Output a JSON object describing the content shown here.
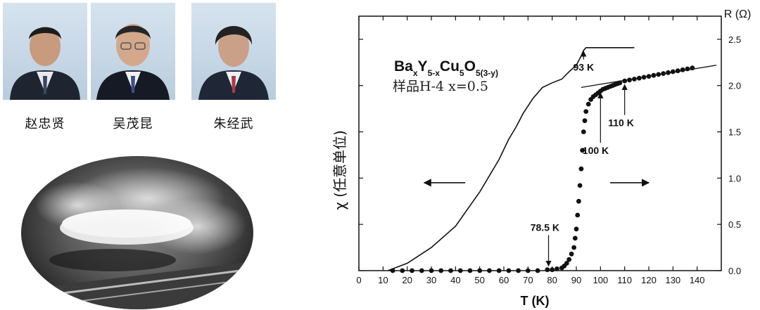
{
  "people": [
    {
      "name": "赵忠贤",
      "icon": "portrait-photo-icon"
    },
    {
      "name": "吴茂昆",
      "icon": "portrait-photo-icon"
    },
    {
      "name": "朱经武",
      "icon": "portrait-photo-icon"
    }
  ],
  "levitation_photo": {
    "icon": "magnetic-levitation-photo-icon"
  },
  "chart_data": {
    "type": "scatter",
    "compound": {
      "base": [
        "Ba",
        "Y",
        "Cu",
        "O"
      ],
      "subscripts": [
        "x",
        "5-x",
        "5",
        "5(3-y)"
      ]
    },
    "sample_label": "样品H-4  x=0.5",
    "xlabel": "T (K)",
    "ylabel_left": "χ (任意单位)",
    "ylabel_right": "R (Ω)",
    "xlim": [
      0,
      150
    ],
    "ylim_right": [
      0,
      2.75
    ],
    "x_ticks": [
      "0",
      "10",
      "20",
      "30",
      "40",
      "50",
      "60",
      "70",
      "80",
      "90",
      "100",
      "110",
      "120",
      "130",
      "140"
    ],
    "y_ticks_right": [
      "0.0",
      "0.5",
      "1.0",
      "1.5",
      "2.0",
      "2.5"
    ],
    "susceptibility_curve": {
      "x": [
        12,
        20,
        30,
        40,
        50,
        58,
        62,
        65,
        68,
        72,
        76,
        80,
        84,
        87,
        90,
        92,
        93,
        94,
        95,
        97,
        100,
        110,
        114
      ],
      "y": [
        0.0,
        0.08,
        0.25,
        0.48,
        0.85,
        1.2,
        1.42,
        1.55,
        1.7,
        1.86,
        1.98,
        2.03,
        2.07,
        2.15,
        2.22,
        2.32,
        2.38,
        2.41,
        2.41,
        2.41,
        2.41,
        2.41,
        2.41
      ]
    },
    "resistance_points": {
      "x": [
        14,
        18,
        22,
        26,
        30,
        34,
        38,
        42,
        46,
        50,
        54,
        58,
        62,
        66,
        70,
        74,
        78,
        80,
        82,
        84,
        85,
        86,
        87,
        88,
        89,
        89.5,
        90,
        90.5,
        91,
        91.5,
        92,
        92.5,
        93,
        93.5,
        94,
        95,
        96,
        97,
        98,
        99,
        100,
        101,
        102,
        103,
        104,
        105,
        106,
        107,
        108,
        110,
        112,
        114,
        116,
        118,
        120,
        122,
        124,
        126,
        128,
        130,
        132,
        134,
        136,
        138
      ],
      "y": [
        0,
        0,
        0,
        0,
        0,
        0,
        0,
        0,
        0,
        0,
        0,
        0,
        0,
        0,
        0,
        0,
        0.01,
        0.01,
        0.02,
        0.03,
        0.05,
        0.08,
        0.12,
        0.18,
        0.25,
        0.35,
        0.45,
        0.6,
        0.75,
        0.92,
        1.1,
        1.3,
        1.5,
        1.62,
        1.72,
        1.8,
        1.85,
        1.88,
        1.9,
        1.92,
        1.94,
        1.96,
        1.97,
        1.98,
        1.99,
        2.0,
        2.01,
        2.02,
        2.03,
        2.05,
        2.06,
        2.07,
        2.08,
        2.09,
        2.1,
        2.11,
        2.12,
        2.13,
        2.14,
        2.15,
        2.16,
        2.17,
        2.18,
        2.19
      ]
    },
    "trend_line": {
      "x": [
        92,
        148
      ],
      "y": [
        1.98,
        2.22
      ]
    },
    "annotations": [
      {
        "text": "93 K",
        "x": 93,
        "y": 2.16,
        "arrow_to": [
          93,
          2.4
        ]
      },
      {
        "text": "110 K",
        "x": 108.5,
        "y": 1.56,
        "arrow_to": [
          110,
          2.04
        ]
      },
      {
        "text": "100 K",
        "x": 98,
        "y": 1.26,
        "arrow_to": [
          100,
          1.95
        ]
      },
      {
        "text": "78.5 K",
        "x": 77,
        "y": 0.43,
        "arrow_to": [
          78.5,
          0.02
        ]
      }
    ],
    "direction_arrows": [
      {
        "label": "left-arrow",
        "from": [
          44,
          0.95
        ],
        "to": [
          27,
          0.95
        ]
      },
      {
        "label": "right-arrow",
        "from": [
          104,
          0.95
        ],
        "to": [
          120,
          0.95
        ]
      }
    ]
  }
}
